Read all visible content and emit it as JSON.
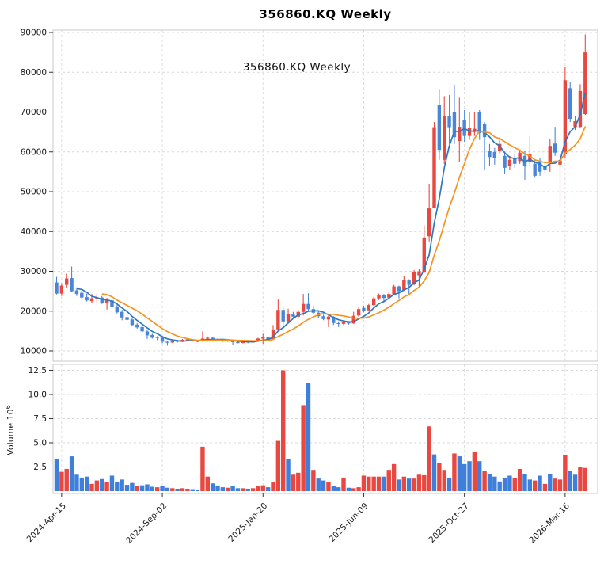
{
  "title": "356860.KQ  Weekly",
  "inner_label": "356860.KQ  Weekly",
  "volume_axis_label": "Volume",
  "volume_scale_base": "10",
  "volume_scale_exp": "6",
  "colors": {
    "up": "#e8483f",
    "down": "#4a86d8",
    "volume_up": "#e8483f",
    "volume_down": "#3d7fdb",
    "ma_fast": "#2e77bf",
    "ma_slow": "#f79320",
    "grid": "#d8d8d8",
    "frame": "#c9c9c9",
    "text": "#1a1a1a"
  },
  "chart_data": {
    "type": "candlestick+volume",
    "title": "356860.KQ  Weekly",
    "x_tick_labels": [
      "2024-Apr-15",
      "2024-Sep-02",
      "2025-Jan-20",
      "2025-Jun-09",
      "2025-Oct-27",
      "2026-Mar-16"
    ],
    "x_tick_weeks": [
      1,
      21,
      41,
      61,
      81,
      101
    ],
    "price_ticks": [
      10000,
      20000,
      30000,
      40000,
      50000,
      60000,
      70000,
      80000,
      90000
    ],
    "price_range": [
      7400,
      90600
    ],
    "volume_tick_labels": [
      "2.5",
      "5.0",
      "7.5",
      "10.0",
      "12.5"
    ],
    "volume_ticks": [
      2.5,
      5.0,
      7.5,
      10.0,
      12.5
    ],
    "volume_range_millions": [
      0,
      13.2
    ],
    "ma_fast_window": 5,
    "ma_slow_window": 10,
    "legend_position": "none",
    "grid": "dashed",
    "candle_fields": [
      "open",
      "high",
      "low",
      "close",
      "volume_millions",
      "volume_bar_color"
    ],
    "candles": [
      [
        27200,
        28600,
        24200,
        24400,
        3.3,
        "b"
      ],
      [
        24400,
        27000,
        23800,
        26400,
        2.0,
        "r"
      ],
      [
        26600,
        29400,
        25800,
        28200,
        2.3,
        "r"
      ],
      [
        28300,
        31200,
        24800,
        25000,
        3.6,
        "b"
      ],
      [
        25200,
        26000,
        23800,
        24300,
        1.7,
        "b"
      ],
      [
        24600,
        25300,
        23200,
        23400,
        1.4,
        "b"
      ],
      [
        23500,
        24400,
        22400,
        22700,
        1.5,
        "b"
      ],
      [
        22500,
        24300,
        22100,
        23200,
        0.75,
        "r"
      ],
      [
        23200,
        24500,
        21900,
        23400,
        1.1,
        "r"
      ],
      [
        23400,
        23800,
        21800,
        22100,
        1.25,
        "b"
      ],
      [
        22100,
        23300,
        20400,
        22700,
        0.95,
        "r"
      ],
      [
        22700,
        23000,
        20800,
        21000,
        1.6,
        "b"
      ],
      [
        21100,
        21500,
        19400,
        19700,
        0.9,
        "b"
      ],
      [
        19800,
        20300,
        17700,
        18400,
        1.2,
        "b"
      ],
      [
        18500,
        19000,
        17500,
        17800,
        0.65,
        "b"
      ],
      [
        17900,
        18200,
        16300,
        16500,
        0.85,
        "b"
      ],
      [
        16600,
        17000,
        15600,
        15900,
        0.55,
        "r"
      ],
      [
        16000,
        16300,
        14700,
        14900,
        0.6,
        "b"
      ],
      [
        14900,
        15200,
        13000,
        13900,
        0.7,
        "b"
      ],
      [
        14000,
        14300,
        13100,
        13300,
        0.45,
        "b"
      ],
      [
        13300,
        13700,
        12700,
        13500,
        0.4,
        "r"
      ],
      [
        13500,
        13700,
        11900,
        12300,
        0.5,
        "b"
      ],
      [
        12300,
        12600,
        11300,
        12100,
        0.35,
        "b"
      ],
      [
        12100,
        12900,
        12000,
        12600,
        0.3,
        "r"
      ],
      [
        12600,
        12800,
        12100,
        12300,
        0.25,
        "b"
      ],
      [
        12300,
        13000,
        12200,
        12800,
        0.3,
        "r"
      ],
      [
        12700,
        13100,
        12400,
        12900,
        0.25,
        "r"
      ],
      [
        12900,
        13000,
        12300,
        12500,
        0.2,
        "b"
      ],
      [
        12500,
        12700,
        12200,
        12400,
        0.15,
        "b"
      ],
      [
        12400,
        14900,
        12300,
        13100,
        4.6,
        "r"
      ],
      [
        13100,
        13600,
        12600,
        13300,
        1.5,
        "r"
      ],
      [
        13300,
        13500,
        12700,
        12900,
        0.8,
        "b"
      ],
      [
        12900,
        13100,
        12400,
        12600,
        0.5,
        "b"
      ],
      [
        12600,
        12800,
        12300,
        12500,
        0.4,
        "b"
      ],
      [
        12500,
        12900,
        12300,
        12800,
        0.35,
        "r"
      ],
      [
        12800,
        12900,
        11400,
        12200,
        0.5,
        "b"
      ],
      [
        12200,
        12500,
        11900,
        12000,
        0.3,
        "b"
      ],
      [
        12000,
        12600,
        11900,
        12400,
        0.3,
        "r"
      ],
      [
        12400,
        12500,
        11900,
        12100,
        0.25,
        "b"
      ],
      [
        12100,
        12800,
        12000,
        12600,
        0.3,
        "r"
      ],
      [
        12600,
        13300,
        12500,
        13100,
        0.55,
        "r"
      ],
      [
        13100,
        14300,
        11800,
        13400,
        0.6,
        "r"
      ],
      [
        13400,
        13600,
        12700,
        12900,
        0.4,
        "b"
      ],
      [
        12900,
        16500,
        12700,
        15300,
        0.9,
        "r"
      ],
      [
        15400,
        22900,
        15200,
        20300,
        5.2,
        "r"
      ],
      [
        20300,
        20900,
        15600,
        17400,
        12.5,
        "r"
      ],
      [
        17400,
        20600,
        17000,
        19200,
        3.3,
        "b"
      ],
      [
        19200,
        19800,
        18200,
        18600,
        1.7,
        "r"
      ],
      [
        18600,
        20300,
        18400,
        19800,
        1.9,
        "r"
      ],
      [
        19800,
        24300,
        18900,
        21800,
        8.9,
        "r"
      ],
      [
        21800,
        24500,
        20000,
        20500,
        11.2,
        "b"
      ],
      [
        20500,
        21300,
        19200,
        19600,
        2.2,
        "r"
      ],
      [
        19600,
        20000,
        18300,
        18700,
        1.3,
        "b"
      ],
      [
        18700,
        19100,
        17700,
        18000,
        1.1,
        "b"
      ],
      [
        17900,
        18900,
        16000,
        18600,
        0.9,
        "r"
      ],
      [
        18600,
        18700,
        16500,
        17000,
        0.5,
        "b"
      ],
      [
        17000,
        17400,
        16000,
        16800,
        0.4,
        "b"
      ],
      [
        16800,
        17600,
        16500,
        17200,
        1.4,
        "r"
      ],
      [
        17200,
        17500,
        16600,
        16900,
        0.35,
        "b"
      ],
      [
        16900,
        19800,
        16800,
        18800,
        0.3,
        "r"
      ],
      [
        18900,
        21000,
        18600,
        20500,
        0.4,
        "r"
      ],
      [
        20800,
        21400,
        19700,
        20000,
        1.6,
        "r"
      ],
      [
        20200,
        21800,
        20000,
        21500,
        1.5,
        "r"
      ],
      [
        21500,
        23600,
        21300,
        23200,
        1.5,
        "r"
      ],
      [
        23200,
        24400,
        22800,
        24000,
        1.5,
        "r"
      ],
      [
        24000,
        24300,
        22500,
        23300,
        1.5,
        "b"
      ],
      [
        23400,
        24800,
        23100,
        24300,
        2.2,
        "r"
      ],
      [
        24200,
        26600,
        24000,
        26200,
        2.8,
        "r"
      ],
      [
        26200,
        26400,
        23200,
        25000,
        1.2,
        "b"
      ],
      [
        25300,
        28900,
        25100,
        27800,
        1.5,
        "r"
      ],
      [
        27700,
        28000,
        24200,
        26600,
        1.3,
        "b"
      ],
      [
        26800,
        30300,
        26500,
        29800,
        1.3,
        "r"
      ],
      [
        29000,
        30500,
        26200,
        30000,
        1.7,
        "r"
      ],
      [
        29700,
        41500,
        29500,
        38500,
        1.65,
        "r"
      ],
      [
        38800,
        52000,
        37500,
        45800,
        6.7,
        "r"
      ],
      [
        46000,
        67500,
        45800,
        66200,
        3.8,
        "b"
      ],
      [
        71800,
        75800,
        58000,
        60500,
        2.9,
        "r"
      ],
      [
        58000,
        74000,
        57000,
        69000,
        2.2,
        "r"
      ],
      [
        69000,
        74300,
        62000,
        66200,
        1.4,
        "b"
      ],
      [
        70000,
        76900,
        62000,
        63700,
        3.9,
        "r"
      ],
      [
        62700,
        73600,
        57400,
        66300,
        3.6,
        "b"
      ],
      [
        68000,
        70500,
        62500,
        64000,
        2.8,
        "b"
      ],
      [
        64000,
        70000,
        63000,
        66000,
        3.1,
        "b"
      ],
      [
        65000,
        70000,
        64000,
        65800,
        4.1,
        "r"
      ],
      [
        70000,
        70500,
        63000,
        64700,
        3.1,
        "b"
      ],
      [
        67000,
        67500,
        55500,
        63700,
        2.1,
        "r"
      ],
      [
        60300,
        62000,
        56500,
        58700,
        1.8,
        "b"
      ],
      [
        60000,
        61000,
        56800,
        58500,
        1.5,
        "b"
      ],
      [
        60300,
        63700,
        59500,
        62000,
        1.0,
        "b"
      ],
      [
        59000,
        60000,
        54400,
        56000,
        1.4,
        "b"
      ],
      [
        56500,
        59000,
        55500,
        58000,
        1.6,
        "b"
      ],
      [
        58500,
        59500,
        56000,
        57000,
        1.4,
        "r"
      ],
      [
        57700,
        60500,
        57000,
        59800,
        2.3,
        "r"
      ],
      [
        59000,
        60400,
        53000,
        56500,
        1.8,
        "b"
      ],
      [
        57500,
        64000,
        56500,
        59500,
        1.2,
        "b"
      ],
      [
        57000,
        58000,
        53500,
        54000,
        1.1,
        "r"
      ],
      [
        57800,
        58500,
        54000,
        55000,
        1.6,
        "b"
      ],
      [
        56500,
        57500,
        54500,
        55500,
        0.75,
        "r"
      ],
      [
        57500,
        63300,
        55000,
        61500,
        1.8,
        "b"
      ],
      [
        62100,
        66300,
        59000,
        59800,
        1.3,
        "r"
      ],
      [
        56800,
        59000,
        46100,
        57800,
        1.2,
        "r"
      ],
      [
        59500,
        81300,
        58500,
        78000,
        3.7,
        "r"
      ],
      [
        76000,
        77500,
        67500,
        68300,
        2.1,
        "b"
      ],
      [
        66300,
        69000,
        65500,
        67700,
        1.7,
        "b"
      ],
      [
        66300,
        77000,
        66000,
        75300,
        2.5,
        "r"
      ],
      [
        69500,
        89500,
        69300,
        85000,
        2.4,
        "r"
      ]
    ]
  }
}
